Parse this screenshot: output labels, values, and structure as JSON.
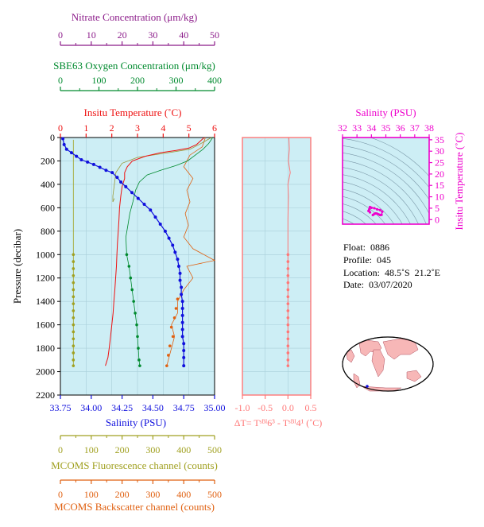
{
  "info": {
    "float": "Float:  0886",
    "profile": "Profile:  045",
    "location": "Location:  48.5˚S  21.2˚E",
    "date": "Date:  03/07/2020"
  },
  "colors": {
    "nitrate": "#8b1a89",
    "oxygen": "#008a2e",
    "temperature": "#ee1111",
    "salinity": "#1010dd",
    "fluorescence": "#a0a020",
    "backscatter": "#e06010",
    "deltaT": "#ff7777",
    "ts": "#ee00cc",
    "panel_bg": "#cdeef5"
  },
  "chart_data": [
    {
      "type": "line",
      "name": "main-profile",
      "ylabel": "Pressure (decibar)",
      "ylim": [
        2200,
        0
      ],
      "yticks": [
        0,
        200,
        400,
        600,
        800,
        1000,
        1200,
        1400,
        1600,
        1800,
        2000,
        2200
      ],
      "axes": {
        "nitrate": {
          "label": "Nitrate Concentration (μm/kg)",
          "range": [
            0,
            50
          ],
          "ticks": [
            0,
            10,
            20,
            30,
            40,
            50
          ]
        },
        "oxygen": {
          "label": "SBE63 Oxygen Concentration (μm/kg)",
          "range": [
            0,
            400
          ],
          "ticks": [
            0,
            100,
            200,
            300,
            400
          ]
        },
        "temperature": {
          "label": "Insitu Temperature (˚C)",
          "range": [
            0,
            6
          ],
          "ticks": [
            0,
            1,
            2,
            3,
            4,
            5,
            6
          ]
        },
        "salinity": {
          "label": "Salinity (PSU)",
          "range": [
            33.75,
            35.0
          ],
          "ticks": [
            "33.75",
            "34.00",
            "34.25",
            "34.50",
            "34.75",
            "35.00"
          ]
        },
        "fluorescence": {
          "label": "MCOMS Fluorescence channel (counts)",
          "range": [
            0,
            500
          ],
          "ticks": [
            0,
            100,
            200,
            300,
            400,
            500
          ]
        },
        "backscatter": {
          "label": "MCOMS Backscatter channel (counts)",
          "range": [
            0,
            500
          ],
          "ticks": [
            0,
            100,
            200,
            300,
            400,
            500
          ]
        }
      },
      "series": {
        "salinity": [
          [
            33.77,
            10
          ],
          [
            33.78,
            60
          ],
          [
            33.8,
            100
          ],
          [
            33.84,
            130
          ],
          [
            33.88,
            160
          ],
          [
            33.92,
            190
          ],
          [
            33.97,
            210
          ],
          [
            34.02,
            230
          ],
          [
            34.07,
            255
          ],
          [
            34.12,
            280
          ],
          [
            34.17,
            300
          ],
          [
            34.21,
            340
          ],
          [
            34.24,
            380
          ],
          [
            34.28,
            420
          ],
          [
            34.33,
            470
          ],
          [
            34.38,
            520
          ],
          [
            34.43,
            570
          ],
          [
            34.48,
            620
          ],
          [
            34.52,
            680
          ],
          [
            34.56,
            740
          ],
          [
            34.6,
            800
          ],
          [
            34.63,
            860
          ],
          [
            34.66,
            920
          ],
          [
            34.68,
            980
          ],
          [
            34.7,
            1040
          ],
          [
            34.71,
            1100
          ],
          [
            34.72,
            1160
          ],
          [
            34.72,
            1220
          ],
          [
            34.73,
            1280
          ],
          [
            34.73,
            1340
          ],
          [
            34.74,
            1400
          ],
          [
            34.74,
            1460
          ],
          [
            34.74,
            1520
          ],
          [
            34.74,
            1580
          ],
          [
            34.74,
            1640
          ],
          [
            34.74,
            1700
          ],
          [
            34.75,
            1760
          ],
          [
            34.75,
            1820
          ],
          [
            34.75,
            1880
          ],
          [
            34.75,
            1950
          ]
        ],
        "temperature": [
          [
            5.6,
            0
          ],
          [
            5.5,
            20
          ],
          [
            5.3,
            60
          ],
          [
            5.0,
            90
          ],
          [
            4.5,
            110
          ],
          [
            3.9,
            130
          ],
          [
            3.3,
            160
          ],
          [
            2.8,
            200
          ],
          [
            2.6,
            250
          ],
          [
            2.5,
            300
          ],
          [
            2.5,
            350
          ],
          [
            2.4,
            420
          ],
          [
            2.35,
            500
          ],
          [
            2.3,
            600
          ],
          [
            2.28,
            700
          ],
          [
            2.25,
            800
          ],
          [
            2.22,
            900
          ],
          [
            2.2,
            1000
          ],
          [
            2.18,
            1100
          ],
          [
            2.15,
            1200
          ],
          [
            2.12,
            1300
          ],
          [
            2.08,
            1400
          ],
          [
            2.05,
            1500
          ],
          [
            2.0,
            1600
          ],
          [
            1.95,
            1700
          ],
          [
            1.9,
            1800
          ],
          [
            1.85,
            1880
          ],
          [
            1.75,
            1950
          ]
        ],
        "oxygen": [
          [
            395,
            0
          ],
          [
            385,
            50
          ],
          [
            370,
            100
          ],
          [
            350,
            150
          ],
          [
            330,
            200
          ],
          [
            300,
            240
          ],
          [
            260,
            280
          ],
          [
            225,
            320
          ],
          [
            205,
            380
          ],
          [
            195,
            450
          ],
          [
            188,
            550
          ],
          [
            180,
            650
          ],
          [
            175,
            750
          ],
          [
            170,
            850
          ],
          [
            172,
            1000
          ],
          [
            178,
            1100
          ],
          [
            182,
            1200
          ],
          [
            186,
            1300
          ],
          [
            190,
            1400
          ],
          [
            194,
            1500
          ],
          [
            198,
            1600
          ],
          [
            200,
            1700
          ],
          [
            202,
            1800
          ],
          [
            204,
            1900
          ],
          [
            206,
            1950
          ]
        ],
        "oxygen_points": [
          [
            172,
            1000
          ],
          [
            178,
            1100
          ],
          [
            182,
            1200
          ],
          [
            186,
            1300
          ],
          [
            190,
            1400
          ],
          [
            194,
            1500
          ],
          [
            198,
            1600
          ],
          [
            200,
            1700
          ],
          [
            202,
            1800
          ],
          [
            204,
            1900
          ],
          [
            206,
            1950
          ]
        ],
        "nitrate": [
          [
            49,
            0
          ],
          [
            47,
            30
          ],
          [
            45,
            60
          ],
          [
            42,
            100
          ],
          [
            35,
            130
          ],
          [
            25,
            170
          ],
          [
            20,
            220
          ],
          [
            18,
            300
          ],
          [
            17.5,
            400
          ],
          [
            17,
            500
          ],
          [
            17,
            550
          ],
          [
            17.5,
            520
          ]
        ],
        "fluorescence": [
          [
            42,
            20
          ],
          [
            42,
            200
          ],
          [
            42,
            400
          ],
          [
            42,
            600
          ],
          [
            42,
            800
          ],
          [
            42,
            1000
          ],
          [
            42,
            1100
          ],
          [
            42,
            1200
          ],
          [
            42,
            1300
          ],
          [
            42,
            1400
          ],
          [
            42,
            1500
          ],
          [
            42,
            1600
          ],
          [
            42,
            1700
          ],
          [
            42,
            1800
          ],
          [
            42,
            1900
          ],
          [
            42,
            1950
          ]
        ],
        "fluorescence_points": [
          [
            42,
            1000
          ],
          [
            42,
            1060
          ],
          [
            42,
            1120
          ],
          [
            42,
            1180
          ],
          [
            42,
            1240
          ],
          [
            42,
            1300
          ],
          [
            42,
            1360
          ],
          [
            42,
            1420
          ],
          [
            42,
            1480
          ],
          [
            42,
            1540
          ],
          [
            42,
            1600
          ],
          [
            42,
            1660
          ],
          [
            42,
            1720
          ],
          [
            42,
            1780
          ],
          [
            42,
            1840
          ],
          [
            42,
            1900
          ],
          [
            42,
            1950
          ]
        ],
        "backscatter": [
          [
            470,
            0
          ],
          [
            460,
            80
          ],
          [
            420,
            150
          ],
          [
            400,
            250
          ],
          [
            430,
            350
          ],
          [
            410,
            450
          ],
          [
            420,
            550
          ],
          [
            405,
            650
          ],
          [
            415,
            750
          ],
          [
            400,
            850
          ],
          [
            430,
            950
          ],
          [
            500,
            1050
          ],
          [
            410,
            1100
          ],
          [
            430,
            1200
          ],
          [
            400,
            1300
          ],
          [
            380,
            1400
          ],
          [
            380,
            1500
          ],
          [
            360,
            1600
          ],
          [
            370,
            1700
          ],
          [
            360,
            1800
          ],
          [
            350,
            1900
          ],
          [
            345,
            1950
          ]
        ],
        "backscatter_points": [
          [
            380,
            1380
          ],
          [
            375,
            1460
          ],
          [
            370,
            1540
          ],
          [
            360,
            1620
          ],
          [
            365,
            1700
          ],
          [
            355,
            1780
          ],
          [
            350,
            1860
          ],
          [
            345,
            1950
          ]
        ]
      }
    },
    {
      "type": "line",
      "name": "delta-t",
      "xlabel": "ΔT= Tˢᴮᴵ6³ - Tˢᴮᴵ4¹ (˚C)",
      "xlim": [
        -1.0,
        0.5
      ],
      "xticks": [
        "-1.0",
        "-0.5",
        "0.0",
        "0.5"
      ],
      "series": [
        [
          0.02,
          0
        ],
        [
          0.03,
          100
        ],
        [
          0.01,
          200
        ],
        [
          0.05,
          300
        ],
        [
          0.0,
          400
        ],
        [
          0.01,
          500
        ],
        [
          0.0,
          700
        ],
        [
          0.0,
          1000
        ],
        [
          0.0,
          1200
        ],
        [
          0.0,
          1400
        ],
        [
          0.0,
          1600
        ],
        [
          0.0,
          1800
        ],
        [
          0.0,
          1950
        ]
      ],
      "points": [
        [
          0.0,
          1000
        ],
        [
          0.0,
          1060
        ],
        [
          0.0,
          1120
        ],
        [
          0.0,
          1180
        ],
        [
          0.0,
          1240
        ],
        [
          0.0,
          1300
        ],
        [
          0.0,
          1360
        ],
        [
          0.0,
          1420
        ],
        [
          0.0,
          1480
        ],
        [
          0.0,
          1540
        ],
        [
          0.0,
          1600
        ],
        [
          0.0,
          1660
        ],
        [
          0.0,
          1720
        ],
        [
          0.0,
          1780
        ],
        [
          0.0,
          1840
        ],
        [
          0.0,
          1900
        ],
        [
          0.0,
          1950
        ]
      ]
    },
    {
      "type": "scatter",
      "name": "ts-diagram",
      "xlabel": "Salinity (PSU)",
      "ylabel": "Insitu Temperature (˚C)",
      "xlim": [
        32,
        38
      ],
      "ylim": [
        -2,
        36
      ],
      "xticks": [
        32,
        33,
        34,
        35,
        36,
        37,
        38
      ],
      "yticks": [
        0,
        5,
        10,
        15,
        20,
        25,
        30,
        35
      ],
      "points": [
        [
          34.1,
          2.0
        ],
        [
          34.2,
          2.5
        ],
        [
          34.3,
          2.7
        ],
        [
          34.4,
          2.6
        ],
        [
          34.5,
          2.3
        ],
        [
          34.6,
          2.0
        ],
        [
          34.7,
          2.1
        ],
        [
          34.75,
          3.5
        ],
        [
          34.6,
          4.2
        ],
        [
          34.4,
          4.5
        ],
        [
          34.2,
          5.0
        ],
        [
          34.0,
          5.2
        ],
        [
          33.9,
          5.5
        ],
        [
          33.85,
          4.5
        ],
        [
          33.8,
          3.8
        ],
        [
          33.9,
          3.2
        ]
      ]
    }
  ]
}
